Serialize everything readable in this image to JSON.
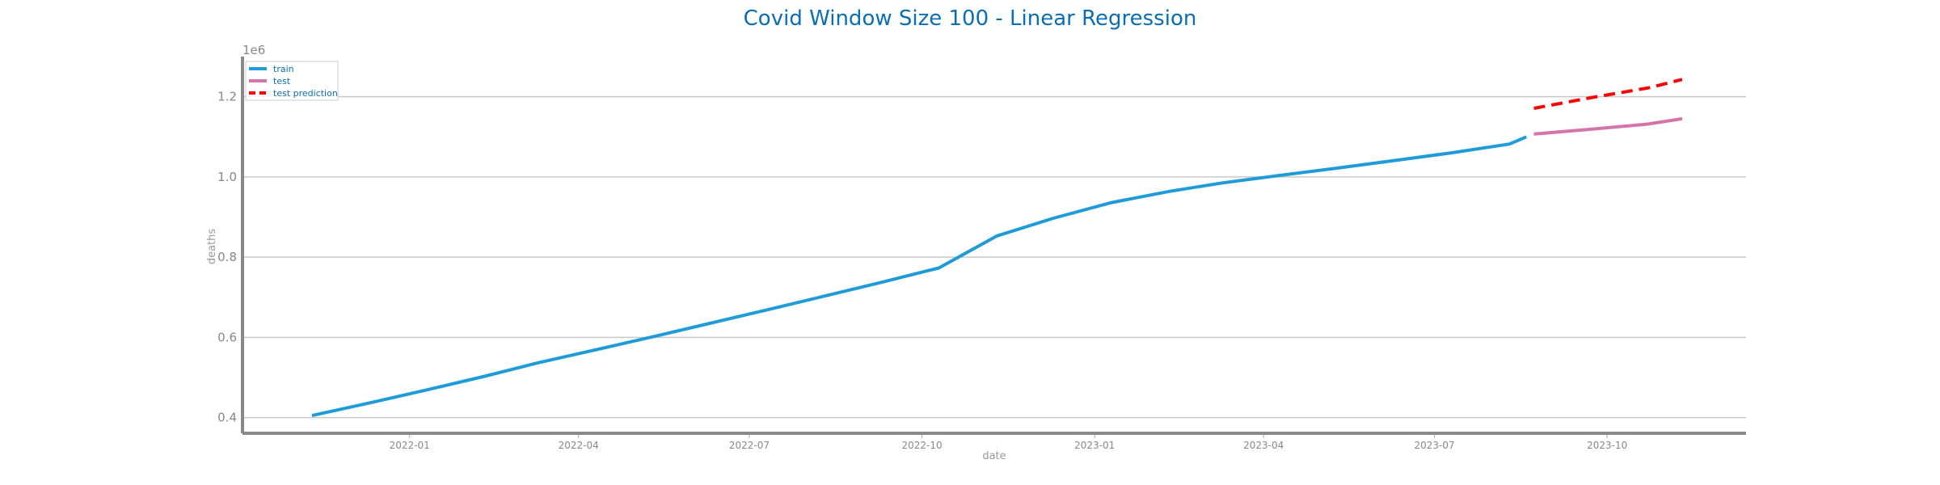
{
  "chart_data": {
    "type": "line",
    "title": "Covid Window Size 100 - Linear Regression",
    "xlabel": "date",
    "ylabel": "deaths",
    "y_multiplier": "1e6",
    "ylim": [
      0.365,
      1.3
    ],
    "xlim": [
      "2021-10-04",
      "2023-12-14"
    ],
    "x_ticks": [
      "2022-01-01",
      "2022-04-01",
      "2022-07-01",
      "2022-10-01",
      "2023-01-01",
      "2023-04-01",
      "2023-07-01",
      "2023-10-01"
    ],
    "x_tick_labels": [
      "2022-01",
      "2022-04",
      "2022-07",
      "2022-10",
      "2023-01",
      "2023-04",
      "2023-07",
      "2023-10"
    ],
    "y_ticks": [
      0.4,
      0.6,
      0.8,
      1.0,
      1.2
    ],
    "y_tick_labels": [
      "0.4",
      "0.6",
      "0.8",
      "1.0",
      "1.2"
    ],
    "grid": "horizontal",
    "legend_position": "top-left",
    "series": [
      {
        "name": "train",
        "color": "#1f9bd7",
        "style": "solid",
        "x": [
          "2021-11-10",
          "2021-12-10",
          "2022-01-10",
          "2022-02-10",
          "2022-03-10",
          "2022-04-10",
          "2022-05-10",
          "2022-06-10",
          "2022-07-10",
          "2022-08-10",
          "2022-09-10",
          "2022-10-10",
          "2022-11-10",
          "2022-12-10",
          "2023-01-10",
          "2023-02-10",
          "2023-03-10",
          "2023-04-10",
          "2023-05-10",
          "2023-06-10",
          "2023-07-10",
          "2023-08-10",
          "2023-08-19"
        ],
        "y": [
          0.405,
          0.436,
          0.469,
          0.503,
          0.536,
          0.569,
          0.601,
          0.635,
          0.668,
          0.703,
          0.738,
          0.773,
          0.853,
          0.897,
          0.936,
          0.964,
          0.985,
          1.004,
          1.022,
          1.041,
          1.06,
          1.082,
          1.1
        ]
      },
      {
        "name": "test",
        "color": "#d474a8",
        "style": "solid",
        "x": [
          "2023-08-23",
          "2023-09-23",
          "2023-10-23",
          "2023-11-10"
        ],
        "y": [
          1.107,
          1.119,
          1.132,
          1.145
        ]
      },
      {
        "name": "test prediction",
        "color": "#ff0000",
        "style": "dashed",
        "x": [
          "2023-08-23",
          "2023-09-23",
          "2023-10-23",
          "2023-11-10"
        ],
        "y": [
          1.171,
          1.198,
          1.222,
          1.243
        ]
      }
    ]
  }
}
